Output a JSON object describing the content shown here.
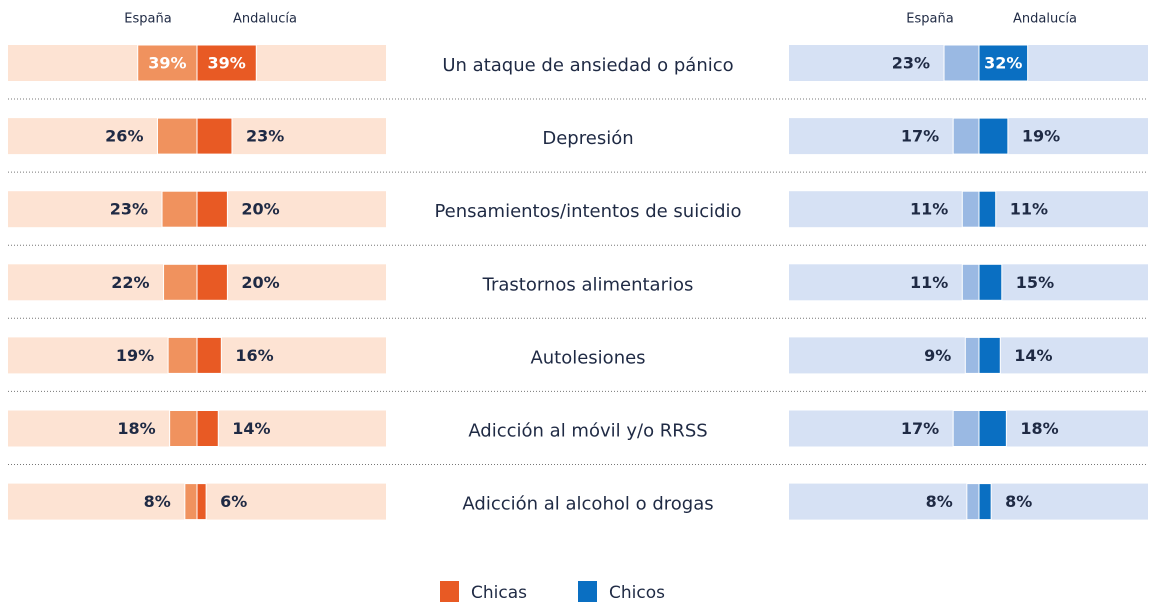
{
  "chart_data": {
    "type": "bar",
    "categories": [
      "Un ataque de ansiedad o pánico",
      "Depresión",
      "Pensamientos/intentos de suicidio",
      "Trastornos alimentarios",
      "Autolesiones",
      "Adicción al móvil y/o RRSS",
      "Adicción al alcohol o drogas"
    ],
    "groups": [
      {
        "name": "Chicas",
        "color": "#e85a24",
        "background": "#fde3d3",
        "series": [
          {
            "name": "España",
            "color": "#f0925e",
            "values": [
              39,
              26,
              23,
              22,
              19,
              18,
              8
            ],
            "value_labels": [
              "39%",
              "26%",
              "23%",
              "22%",
              "19%",
              "18%",
              "8%"
            ]
          },
          {
            "name": "Andalucía",
            "color": "#e85a24",
            "values": [
              39,
              23,
              20,
              20,
              16,
              14,
              6
            ],
            "value_labels": [
              "39%",
              "23%",
              "20%",
              "20%",
              "16%",
              "14%",
              "6%"
            ]
          }
        ]
      },
      {
        "name": "Chicos",
        "color": "#0a6fc2",
        "background": "#d6e1f4",
        "series": [
          {
            "name": "España",
            "color": "#9ab9e3",
            "values": [
              23,
              17,
              11,
              11,
              9,
              17,
              8
            ],
            "value_labels": [
              "23%",
              "17%",
              "11%",
              "11%",
              "9%",
              "17%",
              "8%"
            ]
          },
          {
            "name": "Andalucía",
            "color": "#0a6fc2",
            "values": [
              32,
              19,
              11,
              15,
              14,
              18,
              8
            ],
            "value_labels": [
              "32%",
              "19%",
              "11%",
              "15%",
              "14%",
              "18%",
              "8%"
            ]
          }
        ]
      }
    ]
  }
}
